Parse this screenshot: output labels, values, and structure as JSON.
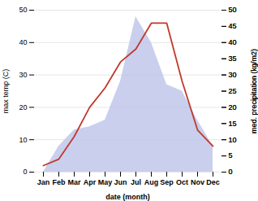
{
  "chart_data": {
    "type": "line",
    "categories": [
      "Jan",
      "Feb",
      "Mar",
      "Apr",
      "May",
      "Jun",
      "Jul",
      "Aug",
      "Sep",
      "Oct",
      "Nov",
      "Dec"
    ],
    "series": [
      {
        "type": "area",
        "color": "#b8bfe8",
        "axis": "y2",
        "values": [
          0,
          8,
          13,
          14,
          16,
          28,
          48,
          40,
          27,
          25,
          16,
          8
        ]
      },
      {
        "type": "line",
        "color": "#c0392b",
        "values": [
          2,
          4,
          11,
          20,
          26,
          34,
          38,
          46,
          46,
          28,
          13,
          8
        ]
      }
    ],
    "xlabel": "date (month)",
    "ylabel": "max temp (C)",
    "y2label": "med. precipitation (kg/m2)",
    "ylim": [
      0,
      50
    ],
    "yticks": [
      0,
      10,
      20,
      30,
      40,
      50
    ],
    "y2lim": [
      0,
      50
    ],
    "y2ticks": [
      0,
      5,
      10,
      15,
      20,
      25,
      30,
      35,
      40,
      45,
      50
    ],
    "grid": true
  }
}
